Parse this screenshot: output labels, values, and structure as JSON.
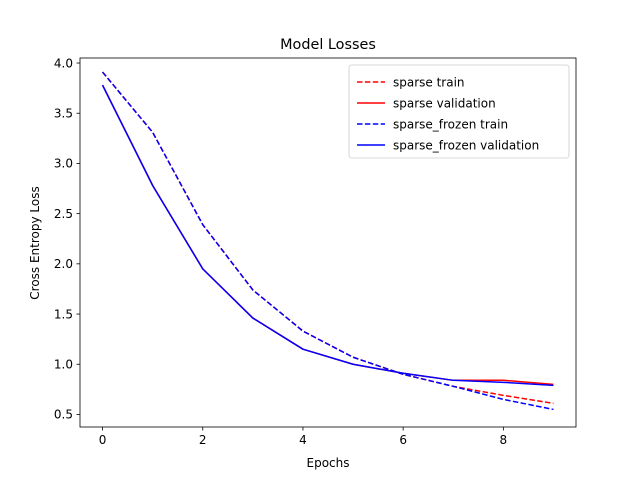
{
  "chart_data": {
    "type": "line",
    "title": "Model Losses",
    "xlabel": "Epochs",
    "ylabel": "Cross Entropy Loss",
    "xlim": [
      -0.45,
      9.45
    ],
    "ylim": [
      0.375,
      4.05
    ],
    "xticks": [
      0,
      2,
      4,
      6,
      8
    ],
    "yticks": [
      0.5,
      1.0,
      1.5,
      2.0,
      2.5,
      3.0,
      3.5,
      4.0
    ],
    "x": [
      0,
      1,
      2,
      3,
      4,
      5,
      6,
      7,
      8,
      9
    ],
    "grid": false,
    "legend_position": "upper right",
    "series": [
      {
        "name": "sparse train",
        "color": "#ff0000",
        "dash": "dashed",
        "values": [
          3.91,
          3.31,
          2.39,
          1.74,
          1.33,
          1.07,
          0.9,
          0.78,
          0.69,
          0.61
        ]
      },
      {
        "name": "sparse validation",
        "color": "#ff0000",
        "dash": "solid",
        "values": [
          3.78,
          2.78,
          1.95,
          1.46,
          1.15,
          1.0,
          0.91,
          0.84,
          0.84,
          0.8
        ]
      },
      {
        "name": "sparse_frozen train",
        "color": "#0000ff",
        "dash": "dashed",
        "values": [
          3.91,
          3.31,
          2.39,
          1.74,
          1.33,
          1.07,
          0.9,
          0.78,
          0.65,
          0.55
        ]
      },
      {
        "name": "sparse_frozen validation",
        "color": "#0000ff",
        "dash": "solid",
        "values": [
          3.78,
          2.78,
          1.95,
          1.46,
          1.15,
          1.0,
          0.91,
          0.84,
          0.82,
          0.79
        ]
      }
    ]
  }
}
